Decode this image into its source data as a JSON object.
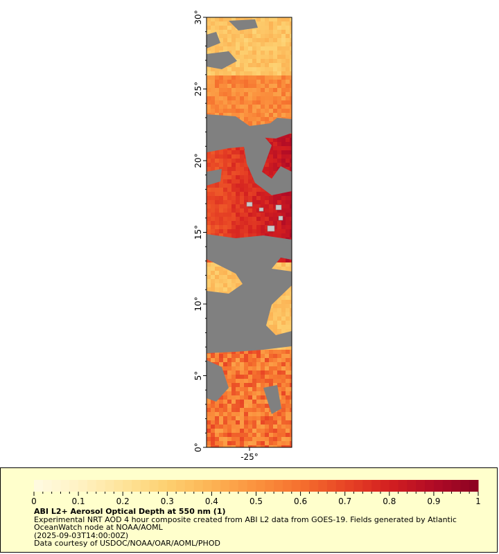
{
  "map": {
    "lat_ticks": [
      "0°",
      "5°",
      "10°",
      "15°",
      "20°",
      "25°",
      "30°"
    ],
    "lat_values": [
      0,
      5,
      10,
      15,
      20,
      25,
      30
    ],
    "lon_ticks": [
      "-25°"
    ],
    "lon_values": [
      -25
    ],
    "lat_range": [
      0,
      30
    ],
    "no_data_color": "#808080",
    "background_color": "#ffffff"
  },
  "colorbar": {
    "min": 0,
    "max": 1,
    "tick_labels": [
      "0",
      "0.1",
      "0.2",
      "0.3",
      "0.4",
      "0.5",
      "0.6",
      "0.7",
      "0.8",
      "0.9",
      "1"
    ],
    "tick_values": [
      0,
      0.1,
      0.2,
      0.3,
      0.4,
      0.5,
      0.6,
      0.7,
      0.8,
      0.9,
      1
    ],
    "colors": [
      "#fffbe2",
      "#fff2c4",
      "#fee49a",
      "#fdd070",
      "#fcb354",
      "#fb923e",
      "#f5702e",
      "#e84525",
      "#d31f20",
      "#b10b26",
      "#8b0222"
    ]
  },
  "legend": {
    "title": "ABI L2+ Aerosol Optical Depth at 550 nm (1)",
    "line1": "Experimental NRT AOD 4 hour composite created from ABI L2 data from GOES-19. Fields generated by Atlantic",
    "line2": "OceanWatch node at NOAA/AOML",
    "line3": "(2025-09-03T14:00:00Z)",
    "line4": "Data courtesy of USDOC/NOAA/OAR/AOML/PHOD",
    "panel_color": "#ffffcc"
  }
}
